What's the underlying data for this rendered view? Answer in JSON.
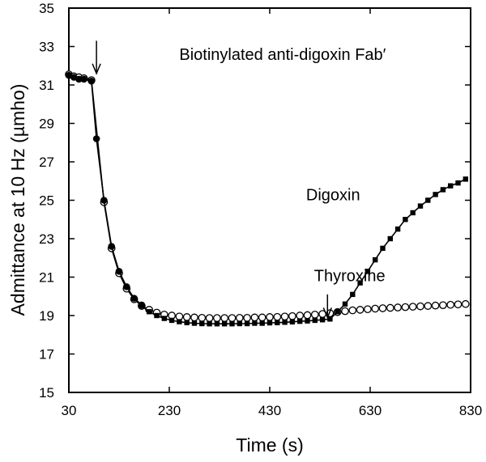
{
  "chart_data": {
    "type": "line",
    "title": "",
    "xlabel": "Time (s)",
    "ylabel": "Admittance at 10 Hz (µmho)",
    "xlim": [
      30,
      830
    ],
    "ylim": [
      15,
      35
    ],
    "xticks": [
      30,
      230,
      430,
      630,
      830
    ],
    "yticks": [
      15,
      17,
      19,
      21,
      23,
      25,
      27,
      29,
      31,
      33,
      35
    ],
    "grid": false,
    "legend": "none",
    "annotations": [
      {
        "text": "Biotinylated anti-digoxin Fab′",
        "x": 250,
        "y": 32.3
      },
      {
        "text": "Digoxin",
        "x": 610,
        "y": 25.0
      },
      {
        "text": "Thyroxine",
        "x": 660,
        "y": 20.8
      }
    ],
    "arrows": [
      {
        "x": 85,
        "y_from": 33.3,
        "y_to": 31.6
      },
      {
        "x": 545,
        "y_from": 20.1,
        "y_to": 18.9
      }
    ],
    "series": [
      {
        "marker": "filled-circle",
        "x": [
          30,
          40,
          50,
          60,
          75,
          85,
          100,
          115,
          130,
          145,
          160,
          175
        ],
        "y": [
          31.5,
          31.4,
          31.3,
          31.3,
          31.2,
          28.2,
          25.0,
          22.6,
          21.3,
          20.5,
          19.9,
          19.55
        ]
      },
      {
        "marker": "open-circle",
        "x": [
          30,
          40,
          50,
          60,
          75,
          100,
          115,
          130,
          145,
          160,
          175,
          190,
          205,
          220,
          235,
          250,
          265,
          280,
          295,
          310,
          325,
          340,
          355,
          370,
          385,
          400,
          415,
          430,
          445,
          460,
          475,
          490,
          505,
          520,
          535,
          550,
          565,
          580,
          595,
          610,
          625,
          640,
          655,
          670,
          685,
          700,
          715,
          730,
          745,
          760,
          775,
          790,
          805,
          820
        ],
        "y": [
          31.55,
          31.45,
          31.4,
          31.35,
          31.25,
          24.9,
          22.5,
          21.2,
          20.4,
          19.85,
          19.5,
          19.3,
          19.15,
          19.05,
          19.0,
          18.95,
          18.92,
          18.9,
          18.88,
          18.87,
          18.87,
          18.87,
          18.87,
          18.88,
          18.88,
          18.9,
          18.9,
          18.92,
          18.93,
          18.95,
          18.97,
          19.0,
          19.02,
          19.05,
          19.08,
          19.12,
          19.18,
          19.23,
          19.27,
          19.3,
          19.33,
          19.36,
          19.38,
          19.4,
          19.42,
          19.44,
          19.46,
          19.48,
          19.5,
          19.52,
          19.54,
          19.56,
          19.58,
          19.6
        ]
      },
      {
        "name": "Digoxin",
        "marker": "filled-square",
        "x": [
          175,
          190,
          205,
          220,
          235,
          250,
          265,
          280,
          295,
          310,
          325,
          340,
          355,
          370,
          385,
          400,
          415,
          430,
          445,
          460,
          475,
          490,
          505,
          520,
          535,
          550,
          565,
          580,
          595,
          610,
          625,
          640,
          655,
          670,
          685,
          700,
          715,
          730,
          745,
          760,
          775,
          790,
          805,
          820
        ],
        "y": [
          19.5,
          19.2,
          19.0,
          18.85,
          18.75,
          18.68,
          18.63,
          18.6,
          18.58,
          18.57,
          18.57,
          18.57,
          18.57,
          18.58,
          18.58,
          18.6,
          18.6,
          18.62,
          18.63,
          18.65,
          18.67,
          18.7,
          18.72,
          18.75,
          18.78,
          18.82,
          19.2,
          19.6,
          20.1,
          20.7,
          21.3,
          21.9,
          22.5,
          23.0,
          23.5,
          24.0,
          24.35,
          24.7,
          25.0,
          25.3,
          25.55,
          25.75,
          25.9,
          26.1
        ]
      }
    ]
  }
}
